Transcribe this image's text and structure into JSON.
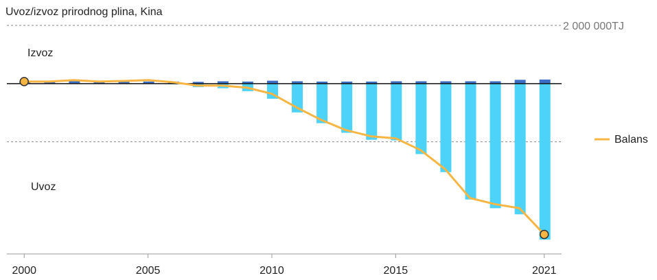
{
  "chart_data": {
    "type": "bar",
    "title": "Uvoz/izvoz prirodnog plina, Kina",
    "categories": [
      2000,
      2001,
      2002,
      2003,
      2004,
      2005,
      2006,
      2007,
      2008,
      2009,
      2010,
      2011,
      2012,
      2013,
      2014,
      2015,
      2016,
      2017,
      2018,
      2019,
      2020,
      2021
    ],
    "xlim": [
      1999.3,
      2021.7
    ],
    "xticks": [
      2000,
      2005,
      2010,
      2015,
      2021
    ],
    "ylim": [
      -5850000,
      2400000
    ],
    "yticks": [
      {
        "value": 2000000,
        "label": "2 000 000TJ"
      }
    ],
    "unlabeled_grid": [
      -2000000
    ],
    "series": [
      {
        "name": "Izvoz",
        "type": "bar",
        "color": "#3b6fc6",
        "values": [
          80000,
          70000,
          80000,
          70000,
          60000,
          70000,
          70000,
          60000,
          80000,
          70000,
          100000,
          80000,
          70000,
          70000,
          70000,
          80000,
          80000,
          80000,
          80000,
          80000,
          130000,
          140000
        ]
      },
      {
        "name": "Uvoz",
        "type": "bar",
        "color": "#4dd2fa",
        "values": [
          -10000,
          -10000,
          -10000,
          -10000,
          -10000,
          -10000,
          -20000,
          -120000,
          -160000,
          -260000,
          -520000,
          -990000,
          -1360000,
          -1690000,
          -1930000,
          -1950000,
          -2420000,
          -3040000,
          -3980000,
          -4280000,
          -4490000,
          -5360000
        ]
      },
      {
        "name": "Balans",
        "type": "line",
        "color": "#f7b543",
        "values": [
          70000,
          70000,
          120000,
          70000,
          90000,
          120000,
          50000,
          -70000,
          -70000,
          -140000,
          -350000,
          -820000,
          -1250000,
          -1600000,
          -1810000,
          -1880000,
          -2280000,
          -2940000,
          -3930000,
          -4140000,
          -4280000,
          -5180000
        ]
      }
    ]
  }
}
